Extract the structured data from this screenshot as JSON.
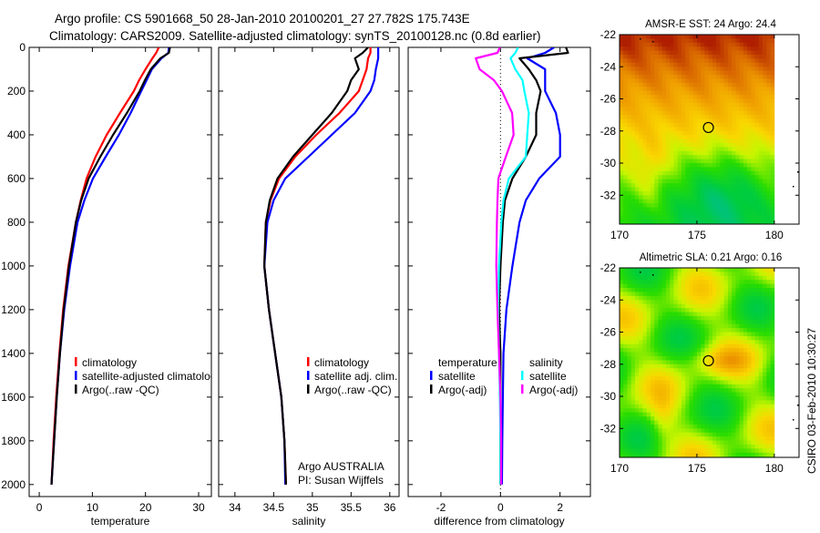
{
  "title": {
    "line1": "Argo profile: CS 5901668_50 28-Jan-2010 20100201_27 27.782S 175.743E",
    "line2": "Climatology: CARS2009. Satellite-adjusted climatology: synTS_20100128.nc (0.8d earlier)"
  },
  "footer": {
    "argo_text": "Argo AUSTRALIA",
    "pi_text": "PI: Susan Wijffels",
    "stamp": "CSIRO 03-Feb-2010 10:30:27"
  },
  "chart_data": [
    {
      "type": "line",
      "id": "temperature",
      "xlabel": "temperature",
      "xlim": [
        -1.9,
        32.4
      ],
      "ylim": [
        2055,
        0
      ],
      "xticks": [
        0,
        10,
        20,
        30
      ],
      "yticks": [
        0,
        200,
        400,
        600,
        800,
        1000,
        1200,
        1400,
        1600,
        1800,
        2000
      ],
      "depth": [
        0,
        25,
        50,
        100,
        150,
        200,
        300,
        400,
        500,
        600,
        700,
        800,
        1000,
        1200,
        1400,
        1600,
        1800,
        2000
      ],
      "series": [
        {
          "name": "climatology",
          "color": "#ff0000",
          "values": [
            22.5,
            22,
            21.3,
            20,
            18.8,
            17.8,
            15.2,
            12.7,
            10.6,
            8.9,
            7.8,
            6.9,
            5.5,
            4.5,
            3.8,
            3.2,
            2.7,
            2.3
          ]
        },
        {
          "name": "satellite-adjusted climatology",
          "color": "#0000ff",
          "values": [
            24.4,
            24.3,
            23,
            21.2,
            20.2,
            19.2,
            17.2,
            15,
            12.5,
            10.1,
            8.5,
            7.2,
            5.8,
            4.7,
            3.9,
            3.3,
            2.8,
            2.3
          ]
        },
        {
          "name": "Argo(..raw -QC)",
          "color": "#000000",
          "values": [
            24.6,
            24.4,
            22.8,
            21,
            19.9,
            18.9,
            16.5,
            13.9,
            11.5,
            9.3,
            7.9,
            6.9,
            5.6,
            4.6,
            3.9,
            3.3,
            2.8,
            2.3
          ]
        }
      ]
    },
    {
      "type": "line",
      "id": "salinity",
      "xlabel": "salinity",
      "xlim": [
        33.79,
        36.12
      ],
      "ylim": [
        2055,
        0
      ],
      "xticks": [
        34,
        34.5,
        35,
        35.5,
        36
      ],
      "depth": [
        0,
        25,
        50,
        100,
        150,
        200,
        300,
        400,
        500,
        600,
        700,
        800,
        1000,
        1200,
        1400,
        1600,
        1800,
        2000
      ],
      "series": [
        {
          "name": "climatology",
          "color": "#ff0000",
          "values": [
            35.75,
            35.75,
            35.72,
            35.7,
            35.65,
            35.6,
            35.35,
            35.05,
            34.78,
            34.57,
            34.46,
            34.4,
            34.38,
            34.44,
            34.52,
            34.6,
            34.64,
            34.66
          ]
        },
        {
          "name": "satellite adj. clim.",
          "color": "#0000ff",
          "values": [
            35.85,
            35.85,
            35.85,
            35.82,
            35.8,
            35.75,
            35.55,
            35.25,
            34.95,
            34.65,
            34.5,
            34.42,
            34.38,
            34.44,
            34.52,
            34.6,
            34.64,
            34.65
          ]
        },
        {
          "name": "Argo(..raw -QC)",
          "color": "#000000",
          "values": [
            35.72,
            35.65,
            35.55,
            35.6,
            35.5,
            35.45,
            35.25,
            35.0,
            34.75,
            34.55,
            34.45,
            34.4,
            34.38,
            34.44,
            34.52,
            34.6,
            34.64,
            34.66
          ]
        }
      ]
    },
    {
      "type": "line",
      "id": "difference",
      "xlabel": "difference from climatology",
      "xlim": [
        -3.1,
        3.02
      ],
      "ylim": [
        2055,
        0
      ],
      "xticks": [
        -2,
        0,
        2
      ],
      "depth": [
        0,
        25,
        50,
        100,
        150,
        200,
        300,
        400,
        500,
        600,
        700,
        800,
        1000,
        1200,
        1400,
        1600,
        1800,
        2000
      ],
      "legend_headers": [
        "temperature",
        "salinity"
      ],
      "series": [
        {
          "name": "satellite",
          "group": "temperature",
          "color": "#0000ff",
          "values": [
            1.8,
            1.5,
            0.9,
            1.5,
            1.5,
            1.5,
            1.86,
            2.0,
            2.0,
            1.3,
            0.85,
            0.64,
            0.4,
            0.2,
            0.1,
            0.08,
            0.06,
            0.05
          ]
        },
        {
          "name": "Argo(-adj)",
          "group": "temperature",
          "color": "#000000",
          "values": [
            2.2,
            2.27,
            0.64,
            0.95,
            1.2,
            1.35,
            1.2,
            1.2,
            0.85,
            0.4,
            0.15,
            0.08,
            0.0,
            -0.05,
            0.0,
            0.0,
            0.0,
            0.0
          ]
        },
        {
          "name": "satellite",
          "group": "salinity",
          "color": "#00ffff",
          "values": [
            0.59,
            0.5,
            0.34,
            0.5,
            0.74,
            0.8,
            0.95,
            0.9,
            0.85,
            0.28,
            0.1,
            0.03,
            -0.05,
            -0.08,
            -0.05,
            -0.02,
            0,
            0
          ]
        },
        {
          "name": "Argo(-adj)",
          "group": "salinity",
          "color": "#ff00ff",
          "values": [
            -0.02,
            -0.1,
            -0.83,
            -0.7,
            -0.22,
            0.05,
            0.39,
            0.44,
            0.18,
            -0.07,
            -0.1,
            -0.12,
            -0.14,
            -0.1,
            -0.05,
            0,
            0.02,
            0.02
          ]
        }
      ]
    },
    {
      "type": "heatmap",
      "id": "sst-map",
      "title": "AMSR-E SST: 24 Argo: 24.4",
      "xlim": [
        170,
        181.6
      ],
      "ylim": [
        -33.8,
        -22
      ],
      "xticks": [
        170,
        175,
        180
      ],
      "yticks": [
        -22,
        -24,
        -26,
        -28,
        -30,
        -32
      ],
      "marker": {
        "lon": 175.743,
        "lat": -27.782
      }
    },
    {
      "type": "heatmap",
      "id": "sla-map",
      "title": "Altimetric SLA: 0.21 Argo: 0.16",
      "xlim": [
        170,
        181.6
      ],
      "ylim": [
        -33.8,
        -22
      ],
      "xticks": [
        170,
        175,
        180
      ],
      "yticks": [
        -22,
        -24,
        -26,
        -28,
        -30,
        -32
      ],
      "marker": {
        "lon": 175.743,
        "lat": -27.782
      }
    }
  ]
}
